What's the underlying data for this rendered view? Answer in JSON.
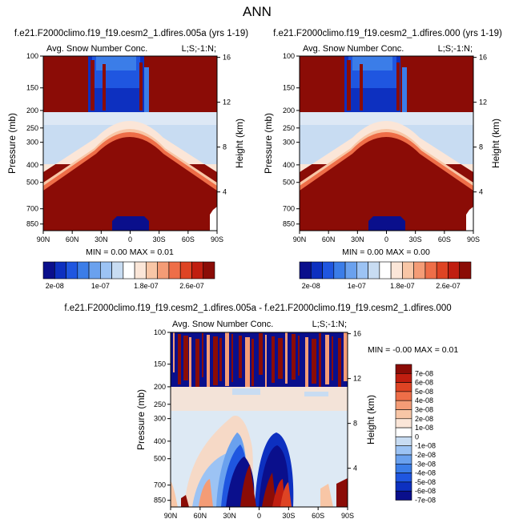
{
  "page_title": "ANN",
  "colors": {
    "dark_red": "#8b0c06",
    "dark_blue": "#0a0f8c",
    "light_blue": "#c8dcf2",
    "pale_peach": "#f5e6dc"
  },
  "chart_data": [
    {
      "type": "heatmap",
      "title": "f.e21.F2000climo.f19_f19.cesm2_1.dfires.005a (yrs 1-19)",
      "subtitle": "Avg. Snow Number Conc.",
      "label_right": "L;S;-1:N;",
      "ylabel": "Pressure (mb)",
      "ylabel_right": "Height (km)",
      "x_ticks": [
        "90N",
        "60N",
        "30N",
        "0",
        "30S",
        "60S",
        "90S"
      ],
      "x_range": [
        90,
        -90
      ],
      "y_ticks": [
        "100",
        "150",
        "200",
        "250",
        "300",
        "400",
        "500",
        "700",
        "850"
      ],
      "y_range_mb": [
        100,
        925
      ],
      "height_ticks": [
        "16",
        "12",
        "8",
        "4"
      ],
      "stats": "MIN =  0.00  MAX =  0.01",
      "colorbar_labels": [
        "2e-08",
        "1e-07",
        "1.8e-07",
        "2.6e-07"
      ],
      "colorbar_colors": [
        "#0a0f8c",
        "#0d30c0",
        "#1f56e0",
        "#3b7de8",
        "#6aa1ee",
        "#9cc3f4",
        "#c8dcf2",
        "#ffffff",
        "#fbe6d8",
        "#f8c6a6",
        "#f49c76",
        "#ee6e48",
        "#de4424",
        "#c01e10",
        "#8b0c06"
      ]
    },
    {
      "type": "heatmap",
      "title": "f.e21.F2000climo.f19_f19.cesm2_1.dfires.000 (yrs 1-19)",
      "subtitle": "Avg. Snow Number Conc.",
      "label_right": "L;S;-1:N;",
      "ylabel": "Pressure (mb)",
      "ylabel_right": "Height (km)",
      "x_ticks": [
        "90N",
        "60N",
        "30N",
        "0",
        "30S",
        "60S",
        "90S"
      ],
      "x_range": [
        90,
        -90
      ],
      "y_ticks": [
        "100",
        "150",
        "200",
        "250",
        "300",
        "400",
        "500",
        "700",
        "850"
      ],
      "y_range_mb": [
        100,
        925
      ],
      "height_ticks": [
        "16",
        "12",
        "8",
        "4"
      ],
      "stats": "MIN =  0.00  MAX =  0.00",
      "colorbar_labels": [
        "2e-08",
        "1e-07",
        "1.8e-07",
        "2.6e-07"
      ]
    },
    {
      "type": "heatmap",
      "title": "f.e21.F2000climo.f19_f19.cesm2_1.dfires.005a - f.e21.F2000climo.f19_f19.cesm2_1.dfires.000",
      "subtitle": "Avg. Snow Number Conc.",
      "label_right": "L;S;-1:N;",
      "ylabel": "Pressure (mb)",
      "ylabel_right": "Height (km)",
      "x_ticks": [
        "90N",
        "60N",
        "30N",
        "0",
        "30S",
        "60S",
        "90S"
      ],
      "x_range": [
        90,
        -90
      ],
      "y_ticks": [
        "100",
        "150",
        "200",
        "250",
        "300",
        "400",
        "500",
        "700",
        "850"
      ],
      "y_range_mb": [
        100,
        925
      ],
      "height_ticks": [
        "16",
        "12",
        "8",
        "4"
      ],
      "stats": "MIN = -0.00  MAX =  0.01",
      "colorbar_labels": [
        "7e-08",
        "6e-08",
        "5e-08",
        "4e-08",
        "3e-08",
        "2e-08",
        "1e-08",
        "0",
        "-1e-08",
        "-2e-08",
        "-3e-08",
        "-4e-08",
        "-5e-08",
        "-6e-08",
        "-7e-08"
      ],
      "colorbar_colors": [
        "#8b0c06",
        "#c01e10",
        "#de4424",
        "#ee6e48",
        "#f49c76",
        "#f8c6a6",
        "#fbe6d8",
        "#ffffff",
        "#c8dcf2",
        "#9cc3f4",
        "#6aa1ee",
        "#3b7de8",
        "#1f56e0",
        "#0d30c0",
        "#0a0f8c"
      ]
    }
  ]
}
